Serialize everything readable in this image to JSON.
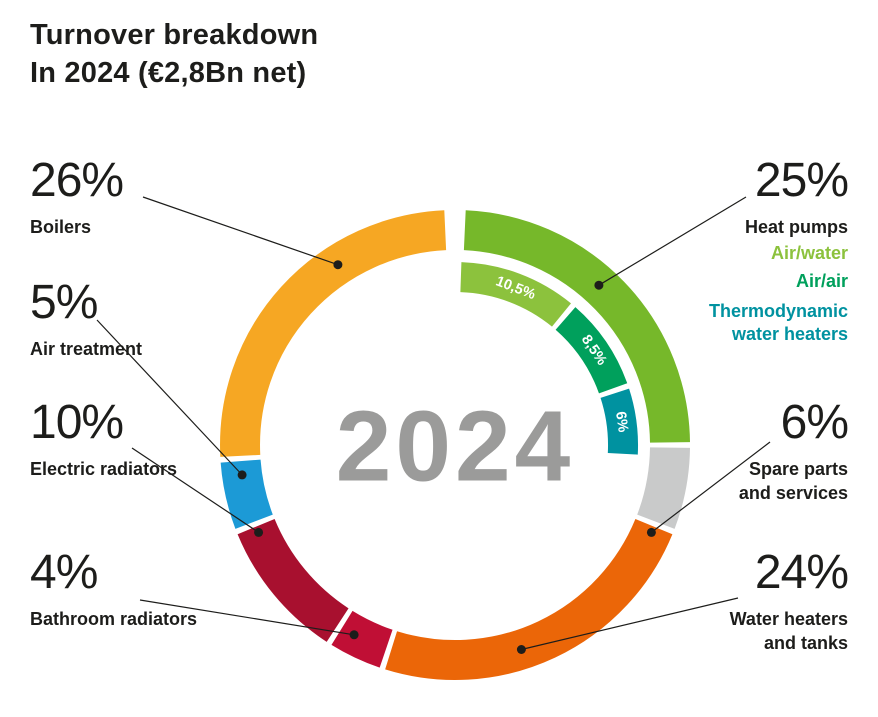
{
  "title": {
    "line1": "Turnover breakdown",
    "line2": "In 2024 (€2,8Bn net)"
  },
  "chart_data": {
    "type": "donut",
    "title": "Turnover breakdown In 2024 (€2,8Bn net)",
    "center_label": "2024",
    "unit": "%",
    "total": 100,
    "segments": [
      {
        "name": "Heat pumps",
        "name_lines": [
          "Heat pumps"
        ],
        "value": 25,
        "pct_label": "25%",
        "color": "#76B82A"
      },
      {
        "name": "Spare parts and services",
        "name_lines": [
          "Spare parts",
          "and services"
        ],
        "value": 6,
        "pct_label": "6%",
        "color": "#C9CACA"
      },
      {
        "name": "Water heaters and tanks",
        "name_lines": [
          "Water heaters",
          "and tanks"
        ],
        "value": 24,
        "pct_label": "24%",
        "color": "#EB6608"
      },
      {
        "name": "Bathroom radiators",
        "name_lines": [
          "Bathroom radiators"
        ],
        "value": 4,
        "pct_label": "4%",
        "color": "#C00F35"
      },
      {
        "name": "Electric radiators",
        "name_lines": [
          "Electric radiators"
        ],
        "value": 10,
        "pct_label": "10%",
        "color": "#A8102F"
      },
      {
        "name": "Air treatment",
        "name_lines": [
          "Air treatment"
        ],
        "value": 5,
        "pct_label": "5%",
        "color": "#1C9AD6"
      },
      {
        "name": "Boilers",
        "name_lines": [
          "Boilers"
        ],
        "value": 26,
        "pct_label": "26%",
        "color": "#F6A723"
      }
    ],
    "heat_pump_breakdown": [
      {
        "name": "Air/water",
        "value": 10.5,
        "label": "10,5%",
        "color": "#8CC23D"
      },
      {
        "name": "Air/air",
        "value": 8.5,
        "label": "8,5%",
        "color": "#00A05C"
      },
      {
        "name": "Thermodynamic water heaters",
        "value": 6,
        "label": "6%",
        "color": "#0092A0"
      }
    ],
    "layout": {
      "legend_position": "sides",
      "start_angle_deg": 0,
      "direction": "clockwise"
    }
  }
}
